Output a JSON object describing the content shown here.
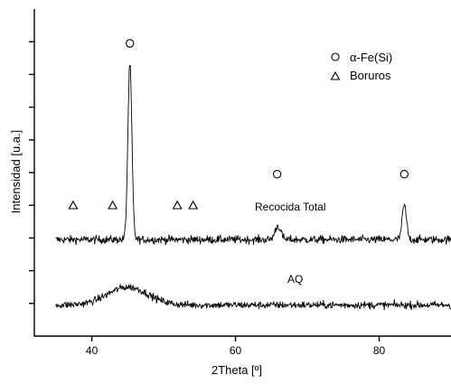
{
  "chart_data": {
    "type": "line",
    "xlabel": "2Theta [º]",
    "ylabel": "Intensidad [u.a.]",
    "xlim": [
      32,
      90
    ],
    "ylim": [
      0,
      10
    ],
    "x_ticks": [
      40,
      60,
      80
    ],
    "y_ticks": [
      1,
      2,
      3,
      4,
      5,
      6,
      7,
      8,
      9
    ],
    "y_tick_labels_shown": false,
    "legend": {
      "position": "top-right",
      "items": [
        {
          "marker": "circle",
          "label": "α-Fe(Si)"
        },
        {
          "marker": "triangle",
          "label": "Boruros"
        }
      ]
    },
    "series": [
      {
        "name": "Recocida Total",
        "baseline": 2.95,
        "noise": 0.13,
        "x_range": [
          35,
          90
        ],
        "peaks": [
          {
            "x": 45.3,
            "height": 5.35,
            "width": 0.28
          },
          {
            "x": 65.9,
            "height": 0.42,
            "width": 0.4
          },
          {
            "x": 83.5,
            "height": 1.05,
            "width": 0.3
          }
        ]
      },
      {
        "name": "AQ",
        "baseline": 0.95,
        "noise": 0.12,
        "x_range": [
          35,
          90
        ],
        "peaks": [
          {
            "x": 45.0,
            "height": 0.55,
            "width": 2.8
          }
        ]
      }
    ],
    "annotations": {
      "alpha_fe_si_circles": [
        {
          "x": 45.3,
          "y": 8.95
        },
        {
          "x": 65.8,
          "y": 4.95
        },
        {
          "x": 83.5,
          "y": 4.95
        }
      ],
      "boruros_triangles": [
        {
          "x": 37.4,
          "y": 4.0
        },
        {
          "x": 42.9,
          "y": 4.0
        },
        {
          "x": 51.9,
          "y": 4.0
        },
        {
          "x": 54.1,
          "y": 4.0
        }
      ]
    }
  }
}
